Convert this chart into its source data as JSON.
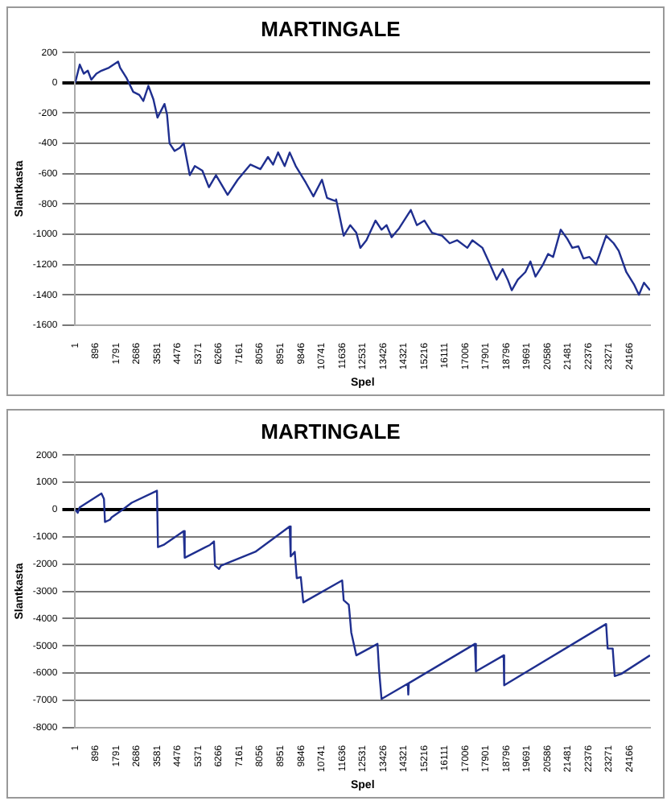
{
  "chart_data": [
    {
      "type": "line",
      "title": "MARTINGALE",
      "xlabel": "Spel",
      "ylabel": "Slantkasta",
      "grid": "y",
      "legend": false,
      "marker": "none",
      "x": [
        1,
        198,
        374,
        550,
        704,
        924,
        1144,
        1474,
        1870,
        1958,
        2244,
        2530,
        2794,
        2970,
        3190,
        3410,
        3586,
        3894,
        4004,
        4114,
        4334,
        4554,
        4730,
        4994,
        5214,
        5544,
        5830,
        6138,
        6644,
        7084,
        7634,
        8074,
        8404,
        8624,
        8844,
        9130,
        9350,
        9614,
        10054,
        10384,
        10758,
        10978,
        11330,
        11374,
        11704,
        11990,
        12254,
        12430,
        12694,
        13090,
        13354,
        13574,
        13794,
        14124,
        14630,
        14894,
        15224,
        15554,
        15994,
        16324,
        16654,
        17094,
        17314,
        17754,
        18084,
        18370,
        18634,
        18854,
        19030,
        19294,
        19624,
        19844,
        20064,
        20394,
        20614,
        20834,
        21164,
        21450,
        21670,
        21934,
        22154,
        22418,
        22704,
        23144,
        23474,
        23694,
        24024,
        24354,
        24574,
        24794,
        25058
      ],
      "series": [
        {
          "color": "#1f2f8f",
          "values": [
            0,
            120,
            60,
            80,
            20,
            60,
            80,
            100,
            140,
            100,
            30,
            -60,
            -80,
            -120,
            -20,
            -110,
            -230,
            -140,
            -210,
            -400,
            -450,
            -430,
            -400,
            -610,
            -550,
            -580,
            -690,
            -610,
            -740,
            -640,
            -540,
            -570,
            -490,
            -540,
            -460,
            -550,
            -460,
            -550,
            -660,
            -750,
            -640,
            -760,
            -780,
            -770,
            -1010,
            -940,
            -990,
            -1090,
            -1040,
            -910,
            -970,
            -940,
            -1020,
            -960,
            -840,
            -940,
            -910,
            -990,
            -1010,
            -1060,
            -1040,
            -1090,
            -1040,
            -1090,
            -1200,
            -1300,
            -1230,
            -1300,
            -1370,
            -1300,
            -1250,
            -1180,
            -1280,
            -1200,
            -1130,
            -1150,
            -970,
            -1030,
            -1090,
            -1080,
            -1160,
            -1150,
            -1200,
            -1010,
            -1060,
            -1110,
            -1250,
            -1330,
            -1400,
            -1320,
            -1370
          ]
        }
      ],
      "xlim": [
        1,
        25060
      ],
      "xticks": [
        1,
        896,
        1791,
        2686,
        3581,
        4476,
        5371,
        6266,
        7161,
        8056,
        8951,
        9846,
        10741,
        11636,
        12531,
        13426,
        14321,
        15216,
        16111,
        17006,
        17901,
        18796,
        19691,
        20586,
        21481,
        22376,
        23271,
        24166
      ],
      "ylim": [
        -1600,
        200
      ],
      "yticks": [
        -1600,
        -1400,
        -1200,
        -1000,
        -800,
        -600,
        -400,
        -200,
        0,
        200
      ]
    },
    {
      "type": "line",
      "title": "MARTINGALE",
      "xlabel": "Spel",
      "ylabel": "Slantkasta",
      "grid": "y",
      "legend": false,
      "marker": "none",
      "x": [
        1,
        110,
        198,
        1144,
        1254,
        1298,
        1518,
        1584,
        2024,
        2464,
        3564,
        3608,
        3850,
        4730,
        4774,
        5170,
        5874,
        6050,
        6094,
        6270,
        6358,
        7854,
        9350,
        9394,
        9570,
        9658,
        9834,
        9944,
        11638,
        11704,
        11924,
        11946,
        12034,
        12254,
        13178,
        13244,
        13354,
        14498,
        14520,
        14542,
        17424,
        17468,
        18678,
        18700,
        23144,
        23210,
        23430,
        23518,
        23804,
        25058
      ],
      "series": [
        {
          "color": "#1f2f8f",
          "values": [
            0,
            -120,
            80,
            590,
            390,
            -460,
            -370,
            -290,
            -30,
            250,
            690,
            -1380,
            -1300,
            -790,
            -1770,
            -1600,
            -1300,
            -1170,
            -2060,
            -2180,
            -2060,
            -1550,
            -620,
            -1720,
            -1550,
            -2520,
            -2480,
            -3410,
            -2600,
            -3330,
            -3490,
            -3660,
            -4510,
            -5350,
            -4930,
            -5860,
            -6950,
            -6390,
            -6790,
            -6370,
            -4930,
            -5940,
            -5350,
            -6450,
            -4200,
            -5100,
            -5100,
            -6110,
            -6030,
            -5350
          ]
        }
      ],
      "xlim": [
        1,
        25060
      ],
      "xticks": [
        1,
        896,
        1791,
        2686,
        3581,
        4476,
        5371,
        6266,
        7161,
        8056,
        8951,
        9846,
        10741,
        11636,
        12531,
        13426,
        14321,
        15216,
        16111,
        17006,
        17901,
        18796,
        19691,
        20586,
        21481,
        22376,
        23271,
        24166
      ],
      "ylim": [
        -8000,
        2000
      ],
      "yticks": [
        -8000,
        -7000,
        -6000,
        -5000,
        -4000,
        -3000,
        -2000,
        -1000,
        0,
        1000,
        2000
      ]
    }
  ]
}
